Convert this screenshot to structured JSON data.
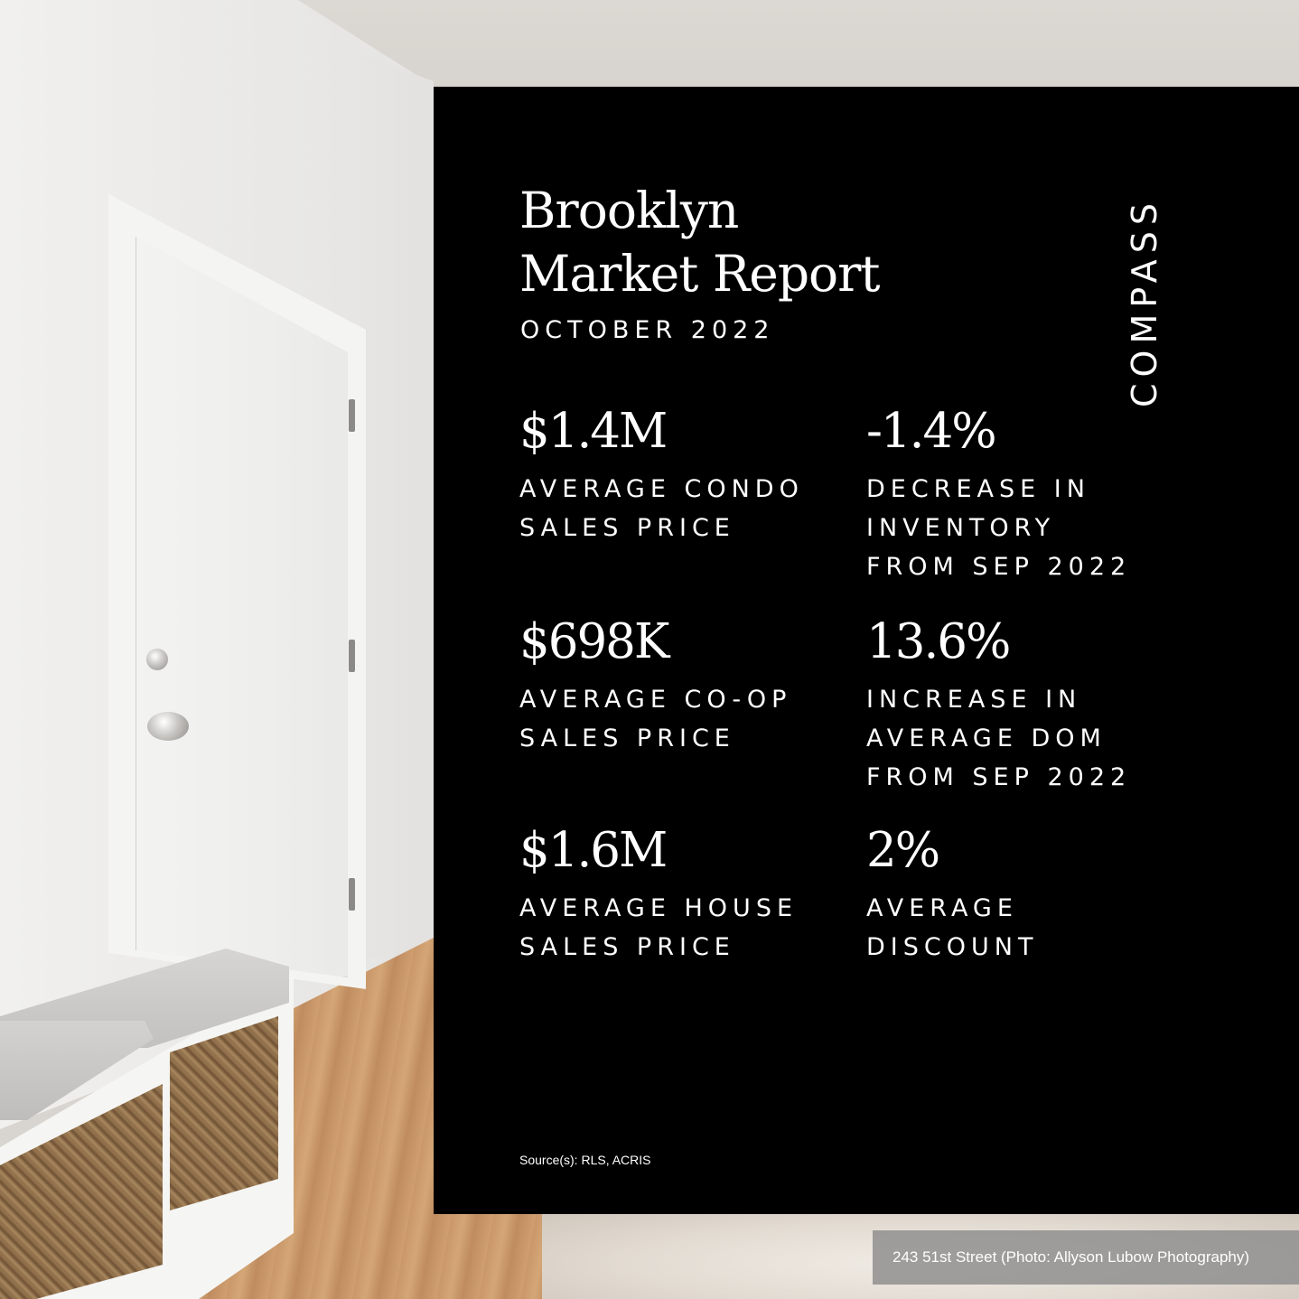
{
  "report": {
    "title_line1": "Brooklyn",
    "title_line2": "Market Report",
    "subtitle": "OCTOBER 2022",
    "brand": "COMPASS",
    "source": "Source(s): RLS, ACRIS"
  },
  "stats": [
    {
      "value": "$1.4M",
      "label": "AVERAGE CONDO\nSALES PRICE"
    },
    {
      "value": "-1.4%",
      "label": "DECREASE IN\nINVENTORY\nFROM SEP 2022"
    },
    {
      "value": "$698K",
      "label": "AVERAGE CO-OP\nSALES PRICE"
    },
    {
      "value": "13.6%",
      "label": "INCREASE IN\nAVERAGE DOM\nFROM SEP 2022"
    },
    {
      "value": "$1.6M",
      "label": "AVERAGE HOUSE\nSALES PRICE"
    },
    {
      "value": "2%",
      "label": "AVERAGE\nDISCOUNT"
    }
  ],
  "photo": {
    "caption": "243 51st Street (Photo: Allyson Lubow Photography)"
  },
  "colors": {
    "panel": "#000000",
    "text": "#ffffff",
    "caption_bg": "#8c8c8c"
  }
}
